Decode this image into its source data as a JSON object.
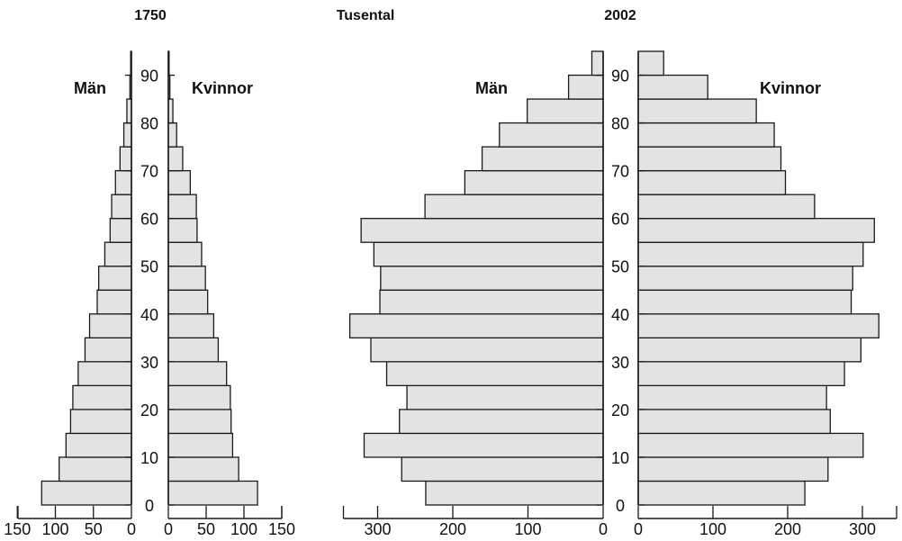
{
  "chart_data": {
    "type": "bar",
    "subtype": "population-pyramid",
    "unit_label": "Tusental",
    "age_groups": [
      "0-4",
      "5-9",
      "10-14",
      "15-19",
      "20-24",
      "25-29",
      "30-34",
      "35-39",
      "40-44",
      "45-49",
      "50-54",
      "55-59",
      "60-64",
      "65-69",
      "70-74",
      "75-79",
      "80-84",
      "85-89",
      "90-94"
    ],
    "age_tick_labels": [
      "0",
      "10",
      "20",
      "30",
      "40",
      "50",
      "60",
      "70",
      "80",
      "90"
    ],
    "colors": {
      "bar_fill": "#e3e3e3",
      "stroke": "#1a1a1a"
    },
    "grid": false,
    "pyramids": [
      {
        "title": "1750",
        "left_label": "Män",
        "right_label": "Kvinnor",
        "xlim": [
          0,
          150
        ],
        "x_ticks": [
          150,
          100,
          50,
          0
        ],
        "x_tick_labels_left": [
          "150",
          "100",
          "50",
          "0"
        ],
        "x_tick_labels_right": [
          "0",
          "50",
          "100",
          "150"
        ],
        "series": [
          {
            "name": "Män",
            "values": [
              118,
              95,
              86,
              80,
              77,
              70,
              61,
              55,
              45,
              43,
              35,
              28,
              26,
              21,
              15,
              10,
              6,
              2,
              1
            ]
          },
          {
            "name": "Kvinnor",
            "values": [
              118,
              93,
              85,
              83,
              82,
              77,
              66,
              60,
              52,
              49,
              44,
              38,
              37,
              29,
              19,
              11,
              6,
              2,
              1
            ]
          }
        ]
      },
      {
        "title": "2002",
        "left_label": "Män",
        "right_label": "Kvinnor",
        "xlim": [
          0,
          350
        ],
        "x_ticks": [
          0,
          100,
          200,
          300
        ],
        "x_tick_labels_left": [
          "300",
          "200",
          "100",
          "0"
        ],
        "x_tick_labels_right": [
          "0",
          "100",
          "200",
          "300"
        ],
        "series": [
          {
            "name": "Män",
            "values": [
              236,
              268,
              318,
              271,
              261,
              288,
              309,
              337,
              297,
              296,
              305,
              322,
              237,
              184,
              161,
              138,
              101,
              46,
              15
            ]
          },
          {
            "name": "Kvinnor",
            "values": [
              223,
              254,
              301,
              257,
              252,
              276,
              298,
              322,
              285,
              287,
              301,
              316,
              236,
              197,
              191,
              182,
              158,
              93,
              34
            ]
          }
        ]
      }
    ]
  }
}
